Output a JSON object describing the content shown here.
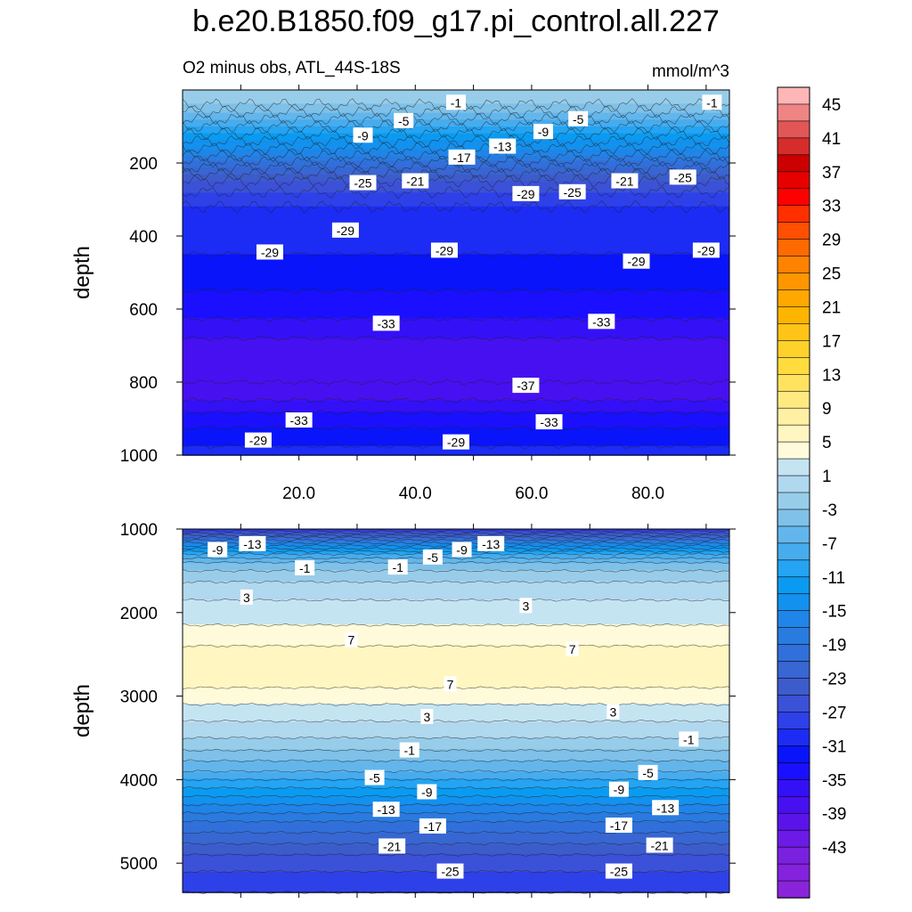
{
  "chart_data": {
    "type": "heatmap",
    "title": "b.e20.B1850.f09_g17.pi_control.all.227",
    "subtitle_left": "O2 minus obs, ATL_44S-18S",
    "units": "mmol/m^3",
    "x_range": [
      0,
      94
    ],
    "x_ticks": [
      20,
      40,
      60,
      80
    ],
    "x_tick_labels": [
      "20.0",
      "40.0",
      "60.0",
      "80.0"
    ],
    "colorbar": {
      "min": -47,
      "max": 49,
      "step": 2,
      "labels": [
        "45",
        "41",
        "37",
        "33",
        "29",
        "25",
        "21",
        "17",
        "13",
        "9",
        "5",
        "1",
        "-3",
        "-7",
        "-11",
        "-15",
        "-19",
        "-23",
        "-27",
        "-31",
        "-35",
        "-39",
        "-43"
      ]
    },
    "panels": [
      {
        "name": "upper-panel",
        "ylabel": "depth",
        "y_range": [
          0,
          1000
        ],
        "y_ticks": [
          200,
          400,
          600,
          800,
          1000
        ],
        "y_tick_labels": [
          "200",
          "400",
          "600",
          "800",
          "1000"
        ],
        "profile": [
          {
            "depth": 0,
            "value": 1
          },
          {
            "depth": 30,
            "value": 0
          },
          {
            "depth": 60,
            "value": -3
          },
          {
            "depth": 100,
            "value": -7
          },
          {
            "depth": 140,
            "value": -11
          },
          {
            "depth": 180,
            "value": -15
          },
          {
            "depth": 220,
            "value": -20
          },
          {
            "depth": 260,
            "value": -24
          },
          {
            "depth": 320,
            "value": -27
          },
          {
            "depth": 400,
            "value": -28
          },
          {
            "depth": 500,
            "value": -30
          },
          {
            "depth": 600,
            "value": -32
          },
          {
            "depth": 680,
            "value": -35
          },
          {
            "depth": 740,
            "value": -36
          },
          {
            "depth": 800,
            "value": -37
          },
          {
            "depth": 850,
            "value": -35
          },
          {
            "depth": 900,
            "value": -32
          },
          {
            "depth": 950,
            "value": -30
          },
          {
            "depth": 1000,
            "value": -28
          }
        ],
        "contour_labels": [
          {
            "x": 47,
            "depth": 35,
            "text": "-1"
          },
          {
            "x": 91,
            "depth": 35,
            "text": "-1"
          },
          {
            "x": 38,
            "depth": 85,
            "text": "-5"
          },
          {
            "x": 68,
            "depth": 80,
            "text": "-5"
          },
          {
            "x": 31,
            "depth": 125,
            "text": "-9"
          },
          {
            "x": 62,
            "depth": 115,
            "text": "-9"
          },
          {
            "x": 55,
            "depth": 155,
            "text": "-13"
          },
          {
            "x": 48,
            "depth": 185,
            "text": "-17"
          },
          {
            "x": 31,
            "depth": 255,
            "text": "-25"
          },
          {
            "x": 40,
            "depth": 250,
            "text": "-21"
          },
          {
            "x": 76,
            "depth": 250,
            "text": "-21"
          },
          {
            "x": 86,
            "depth": 240,
            "text": "-25"
          },
          {
            "x": 59,
            "depth": 285,
            "text": "-29"
          },
          {
            "x": 67,
            "depth": 280,
            "text": "-25"
          },
          {
            "x": 28,
            "depth": 385,
            "text": "-29"
          },
          {
            "x": 15,
            "depth": 445,
            "text": "-29"
          },
          {
            "x": 45,
            "depth": 440,
            "text": "-29"
          },
          {
            "x": 78,
            "depth": 470,
            "text": "-29"
          },
          {
            "x": 90,
            "depth": 440,
            "text": "-29"
          },
          {
            "x": 35,
            "depth": 640,
            "text": "-33"
          },
          {
            "x": 72,
            "depth": 635,
            "text": "-33"
          },
          {
            "x": 59,
            "depth": 810,
            "text": "-37"
          },
          {
            "x": 20,
            "depth": 905,
            "text": "-33"
          },
          {
            "x": 63,
            "depth": 910,
            "text": "-33"
          },
          {
            "x": 13,
            "depth": 960,
            "text": "-29"
          },
          {
            "x": 47,
            "depth": 965,
            "text": "-29"
          }
        ]
      },
      {
        "name": "lower-panel",
        "ylabel": "depth",
        "y_range": [
          1000,
          5350
        ],
        "y_ticks": [
          1000,
          2000,
          3000,
          4000,
          5000
        ],
        "y_tick_labels": [
          "1000",
          "2000",
          "3000",
          "4000",
          "5000"
        ],
        "profile": [
          {
            "depth": 1000,
            "value": -27
          },
          {
            "depth": 1100,
            "value": -19
          },
          {
            "depth": 1200,
            "value": -13
          },
          {
            "depth": 1300,
            "value": -7
          },
          {
            "depth": 1400,
            "value": -3
          },
          {
            "depth": 1500,
            "value": -1
          },
          {
            "depth": 1700,
            "value": 2
          },
          {
            "depth": 2000,
            "value": 4
          },
          {
            "depth": 2300,
            "value": 6
          },
          {
            "depth": 2500,
            "value": 8
          },
          {
            "depth": 2800,
            "value": 8
          },
          {
            "depth": 3000,
            "value": 6
          },
          {
            "depth": 3300,
            "value": 3
          },
          {
            "depth": 3500,
            "value": 1
          },
          {
            "depth": 3650,
            "value": -1
          },
          {
            "depth": 3900,
            "value": -5
          },
          {
            "depth": 4100,
            "value": -9
          },
          {
            "depth": 4300,
            "value": -13
          },
          {
            "depth": 4500,
            "value": -17
          },
          {
            "depth": 4700,
            "value": -20
          },
          {
            "depth": 4900,
            "value": -23
          },
          {
            "depth": 5100,
            "value": -25
          },
          {
            "depth": 5350,
            "value": -27
          }
        ],
        "contour_labels": [
          {
            "x": 6,
            "depth": 1250,
            "text": "-9"
          },
          {
            "x": 12,
            "depth": 1180,
            "text": "-13"
          },
          {
            "x": 43,
            "depth": 1340,
            "text": "-5"
          },
          {
            "x": 48,
            "depth": 1250,
            "text": "-9"
          },
          {
            "x": 53,
            "depth": 1180,
            "text": "-13"
          },
          {
            "x": 21,
            "depth": 1470,
            "text": "-1"
          },
          {
            "x": 37,
            "depth": 1460,
            "text": "-1"
          },
          {
            "x": 11,
            "depth": 1820,
            "text": "3"
          },
          {
            "x": 59,
            "depth": 1920,
            "text": "3"
          },
          {
            "x": 29,
            "depth": 2330,
            "text": "7"
          },
          {
            "x": 67,
            "depth": 2440,
            "text": "7"
          },
          {
            "x": 46,
            "depth": 2860,
            "text": "7"
          },
          {
            "x": 42,
            "depth": 3250,
            "text": "3"
          },
          {
            "x": 74,
            "depth": 3190,
            "text": "3"
          },
          {
            "x": 39,
            "depth": 3650,
            "text": "-1"
          },
          {
            "x": 87,
            "depth": 3520,
            "text": "-1"
          },
          {
            "x": 33,
            "depth": 3980,
            "text": "-5"
          },
          {
            "x": 80,
            "depth": 3920,
            "text": "-5"
          },
          {
            "x": 42,
            "depth": 4150,
            "text": "-9"
          },
          {
            "x": 75,
            "depth": 4120,
            "text": "-9"
          },
          {
            "x": 35,
            "depth": 4360,
            "text": "-13"
          },
          {
            "x": 83,
            "depth": 4340,
            "text": "-13"
          },
          {
            "x": 43,
            "depth": 4560,
            "text": "-17"
          },
          {
            "x": 75,
            "depth": 4550,
            "text": "-17"
          },
          {
            "x": 36,
            "depth": 4800,
            "text": "-21"
          },
          {
            "x": 82,
            "depth": 4790,
            "text": "-21"
          },
          {
            "x": 46,
            "depth": 5100,
            "text": "-25"
          },
          {
            "x": 75,
            "depth": 5100,
            "text": "-25"
          }
        ]
      }
    ]
  }
}
